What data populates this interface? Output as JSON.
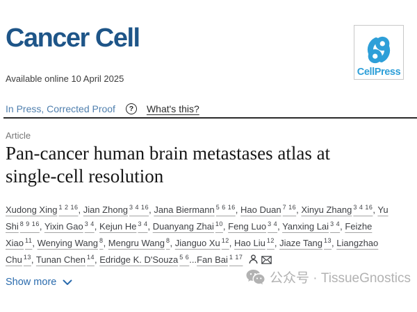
{
  "header": {
    "journal_title": "Cancer Cell",
    "cellpress_label": "CellPress"
  },
  "meta": {
    "available_online": "Available online 10 April 2025"
  },
  "status_bar": {
    "status_label": "In Press, Corrected Proof",
    "help_glyph": "?",
    "help_link_label": "What's this?"
  },
  "article": {
    "kicker": "Article",
    "title": "Pan-cancer human brain metastases atlas at\nsingle-cell resolution",
    "authors": [
      {
        "name": "Xudong Xing",
        "sup": "1 2 16",
        "sep": ", "
      },
      {
        "name": "Jian Zhong",
        "sup": "3 4 16",
        "sep": ", "
      },
      {
        "name": "Jana Biermann",
        "sup": "5 6 16",
        "sep": ", "
      },
      {
        "name": "Hao Duan",
        "sup": "7 16",
        "sep": ", "
      },
      {
        "name": "Xinyu Zhang",
        "sup": "3 4 16",
        "sep": ", "
      },
      {
        "name": "Yu Shi",
        "sup": "8 9 16",
        "sep": ", "
      },
      {
        "name": "Yixin Gao",
        "sup": "3 4",
        "sep": ", "
      },
      {
        "name": "Kejun He",
        "sup": "3 4",
        "sep": ", "
      },
      {
        "name": "Duanyang Zhai",
        "sup": "10",
        "sep": ", "
      },
      {
        "name": "Feng Luo",
        "sup": "3 4",
        "sep": ", "
      },
      {
        "name": "Yanxing Lai",
        "sup": "3 4",
        "sep": ", "
      },
      {
        "name": "Feizhe Xiao",
        "sup": "11",
        "sep": ", "
      },
      {
        "name": "Wenying Wang",
        "sup": "8",
        "sep": ", "
      },
      {
        "name": "Mengru Wang",
        "sup": "8",
        "sep": ", "
      },
      {
        "name": "Jianguo Xu",
        "sup": "12",
        "sep": ", "
      },
      {
        "name": "Hao Liu",
        "sup": "12",
        "sep": ", "
      },
      {
        "name": "Jiaze Tang",
        "sup": "13",
        "sep": ", "
      },
      {
        "name": "Liangzhao Chu",
        "sup": "13",
        "sep": ", "
      },
      {
        "name": "Tunan Chen",
        "sup": "14",
        "sep": ", "
      },
      {
        "name": "Edridge K. D'Souza",
        "sup": "5 6",
        "sep": "..."
      },
      {
        "name": "Fan Bai",
        "sup": "1 17",
        "sep": "",
        "icons": true
      }
    ],
    "show_more_label": "Show more"
  },
  "watermark": {
    "label": "公众号 · TissueGnostics"
  },
  "colors": {
    "journal_blue": "#1e5588",
    "cellpress_blue": "#2e9fd8",
    "status_blue": "#4f7fae",
    "link_blue": "#2a6bad",
    "title_dark": "#161616",
    "author_gray": "#3e4044",
    "watermark_gray": "#b2b2b2"
  }
}
